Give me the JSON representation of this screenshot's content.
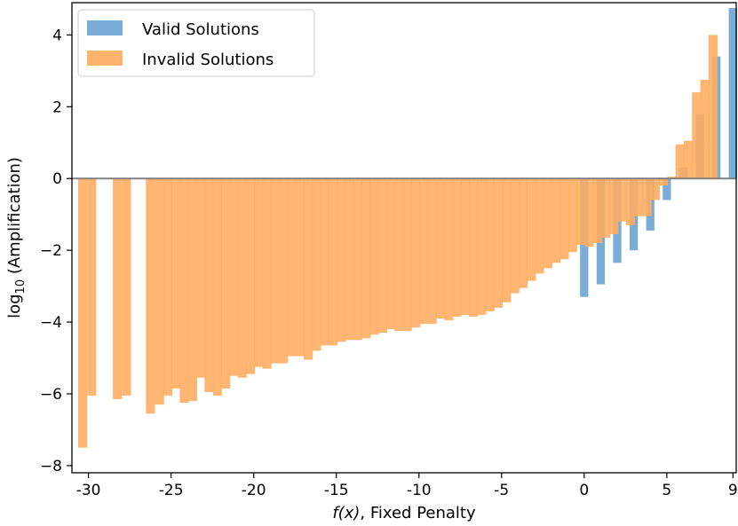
{
  "chart_data": {
    "type": "bar",
    "xlabel_italic": "f(x)",
    "xlabel_rest": ", Fixed Penalty",
    "ylabel_prefix": "log",
    "ylabel_sub": "10",
    "ylabel_rest": " (Amplification)",
    "xlim": [
      -31,
      9.2
    ],
    "ylim": [
      -8.2,
      4.9
    ],
    "x_ticks": [
      {
        "v": -30,
        "label": "-30"
      },
      {
        "v": -25,
        "label": "-25"
      },
      {
        "v": -20,
        "label": "-20"
      },
      {
        "v": -15,
        "label": "-15"
      },
      {
        "v": -10,
        "label": "-10"
      },
      {
        "v": -5,
        "label": "-5"
      },
      {
        "v": 0,
        "label": "0"
      },
      {
        "v": 5,
        "label": "5"
      },
      {
        "v": 9,
        "label": "9"
      }
    ],
    "y_ticks": [
      {
        "v": 4,
        "label": "4"
      },
      {
        "v": 2,
        "label": "2"
      },
      {
        "v": 0,
        "label": "0"
      },
      {
        "v": -2,
        "label": "−2"
      },
      {
        "v": -4,
        "label": "−4"
      },
      {
        "v": -6,
        "label": "−6"
      },
      {
        "v": -8,
        "label": "−8"
      }
    ],
    "legend": {
      "position": "upper-left",
      "items": [
        {
          "name": "Valid Solutions",
          "color": "#5b9bd0"
        },
        {
          "name": "Invalid Solutions",
          "color": "#ffac5e"
        }
      ]
    },
    "zero_line": true,
    "series": [
      {
        "name": "Valid Solutions",
        "color": "#5b9bd0",
        "bar_width": 0.5,
        "points": [
          {
            "x": 0,
            "y": -3.3
          },
          {
            "x": 1,
            "y": -2.95
          },
          {
            "x": 2,
            "y": -2.35
          },
          {
            "x": 3,
            "y": -2.0
          },
          {
            "x": 4,
            "y": -1.45
          },
          {
            "x": 5,
            "y": -0.6
          },
          {
            "x": 6,
            "y": 0.3
          },
          {
            "x": 7,
            "y": 1.8
          },
          {
            "x": 8,
            "y": 3.4
          },
          {
            "x": 9,
            "y": 4.75
          }
        ]
      },
      {
        "name": "Invalid Solutions",
        "color": "#ffac5e",
        "bar_width": 0.55,
        "points": [
          {
            "x": -30.35,
            "y": -7.5
          },
          {
            "x": -29.8,
            "y": -6.05
          },
          {
            "x": -28.25,
            "y": -6.15
          },
          {
            "x": -27.7,
            "y": -6.05
          },
          {
            "x": -26.25,
            "y": -6.55
          },
          {
            "x": -25.7,
            "y": -6.3
          },
          {
            "x": -25.2,
            "y": -6.05
          },
          {
            "x": -24.7,
            "y": -5.85
          },
          {
            "x": -24.2,
            "y": -6.25
          },
          {
            "x": -23.7,
            "y": -6.2
          },
          {
            "x": -23.2,
            "y": -5.55
          },
          {
            "x": -22.7,
            "y": -5.95
          },
          {
            "x": -22.2,
            "y": -6.05
          },
          {
            "x": -21.7,
            "y": -5.85
          },
          {
            "x": -21.2,
            "y": -5.5
          },
          {
            "x": -20.7,
            "y": -5.55
          },
          {
            "x": -20.2,
            "y": -5.45
          },
          {
            "x": -19.7,
            "y": -5.25
          },
          {
            "x": -19.2,
            "y": -5.3
          },
          {
            "x": -18.7,
            "y": -5.15
          },
          {
            "x": -18.2,
            "y": -5.15
          },
          {
            "x": -17.7,
            "y": -4.95
          },
          {
            "x": -17.2,
            "y": -4.95
          },
          {
            "x": -16.7,
            "y": -5.05
          },
          {
            "x": -16.2,
            "y": -4.8
          },
          {
            "x": -15.7,
            "y": -4.65
          },
          {
            "x": -15.2,
            "y": -4.65
          },
          {
            "x": -14.7,
            "y": -4.55
          },
          {
            "x": -14.2,
            "y": -4.5
          },
          {
            "x": -13.7,
            "y": -4.5
          },
          {
            "x": -13.2,
            "y": -4.45
          },
          {
            "x": -12.7,
            "y": -4.35
          },
          {
            "x": -12.2,
            "y": -4.3
          },
          {
            "x": -11.7,
            "y": -4.2
          },
          {
            "x": -11.2,
            "y": -4.25
          },
          {
            "x": -10.7,
            "y": -4.25
          },
          {
            "x": -10.2,
            "y": -4.15
          },
          {
            "x": -9.7,
            "y": -4.05
          },
          {
            "x": -9.2,
            "y": -4.05
          },
          {
            "x": -8.7,
            "y": -3.9
          },
          {
            "x": -8.2,
            "y": -3.95
          },
          {
            "x": -7.7,
            "y": -3.85
          },
          {
            "x": -7.2,
            "y": -3.8
          },
          {
            "x": -6.7,
            "y": -3.85
          },
          {
            "x": -6.2,
            "y": -3.8
          },
          {
            "x": -5.7,
            "y": -3.7
          },
          {
            "x": -5.2,
            "y": -3.6
          },
          {
            "x": -4.7,
            "y": -3.45
          },
          {
            "x": -4.2,
            "y": -3.2
          },
          {
            "x": -3.7,
            "y": -3.05
          },
          {
            "x": -3.2,
            "y": -2.85
          },
          {
            "x": -2.7,
            "y": -2.65
          },
          {
            "x": -2.2,
            "y": -2.5
          },
          {
            "x": -1.7,
            "y": -2.35
          },
          {
            "x": -1.2,
            "y": -2.25
          },
          {
            "x": -0.7,
            "y": -2.05
          },
          {
            "x": -0.2,
            "y": -1.85
          },
          {
            "x": 0.3,
            "y": -1.9
          },
          {
            "x": 0.8,
            "y": -1.8
          },
          {
            "x": 1.3,
            "y": -1.65
          },
          {
            "x": 1.8,
            "y": -1.55
          },
          {
            "x": 2.3,
            "y": -1.2
          },
          {
            "x": 2.8,
            "y": -1.3
          },
          {
            "x": 3.3,
            "y": -1.05
          },
          {
            "x": 3.8,
            "y": -1.05
          },
          {
            "x": 4.3,
            "y": -0.6
          },
          {
            "x": 4.8,
            "y": -0.2
          },
          {
            "x": 5.3,
            "y": 0.05
          },
          {
            "x": 5.8,
            "y": 0.95
          },
          {
            "x": 6.3,
            "y": 1.05
          },
          {
            "x": 6.8,
            "y": 2.4
          },
          {
            "x": 7.3,
            "y": 2.75
          },
          {
            "x": 7.8,
            "y": 4.0
          }
        ]
      }
    ]
  }
}
